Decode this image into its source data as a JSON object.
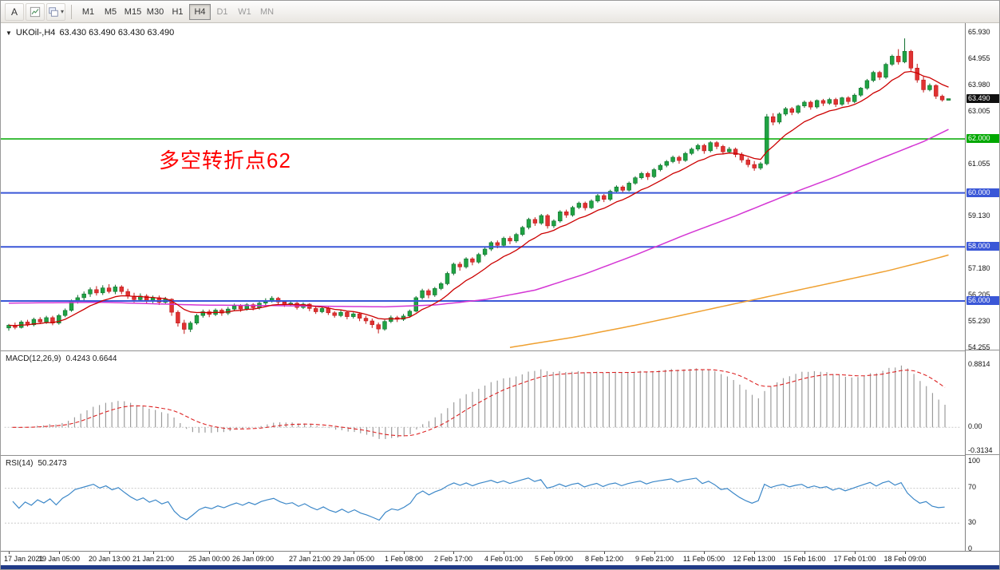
{
  "toolbar": {
    "a_button_label": "A",
    "timeframes": [
      "M1",
      "M5",
      "M15",
      "M30",
      "H1",
      "H4",
      "D1",
      "W1",
      "MN"
    ],
    "active_timeframe": "H4",
    "dim_timeframes": [
      "D1",
      "W1",
      "MN"
    ]
  },
  "chart": {
    "title": "UKOil-,H4",
    "ohlc": "63.430 63.490 63.430 63.490",
    "annotation": "多空转折点62",
    "annotation_color": "#ff0000"
  },
  "price_axis": {
    "labels": [
      {
        "text": "65.930",
        "price": 65.93,
        "style": "normal"
      },
      {
        "text": "64.955",
        "price": 64.955,
        "style": "normal"
      },
      {
        "text": "63.980",
        "price": 63.98,
        "style": "normal"
      },
      {
        "text": "63.005",
        "price": 63.005,
        "style": "normal"
      },
      {
        "text": "63.490",
        "price": 63.49,
        "style": "current"
      },
      {
        "text": "62.000",
        "price": 62.0,
        "style": "green"
      },
      {
        "text": "61.055",
        "price": 61.055,
        "style": "normal"
      },
      {
        "text": "60.000",
        "price": 60.0,
        "style": "blue"
      },
      {
        "text": "59.130",
        "price": 59.13,
        "style": "normal"
      },
      {
        "text": "58.000",
        "price": 58.0,
        "style": "blue"
      },
      {
        "text": "57.180",
        "price": 57.18,
        "style": "normal"
      },
      {
        "text": "56.205",
        "price": 56.205,
        "style": "normal"
      },
      {
        "text": "56.000",
        "price": 56.0,
        "style": "blue"
      },
      {
        "text": "55.230",
        "price": 55.23,
        "style": "normal"
      },
      {
        "text": "54.255",
        "price": 54.255,
        "style": "normal"
      }
    ]
  },
  "hlines": [
    {
      "price": 62.0,
      "color": "#00a800",
      "width": 1.6
    },
    {
      "price": 60.0,
      "color": "#3a57d7",
      "width": 2
    },
    {
      "price": 58.0,
      "color": "#3a57d7",
      "width": 2
    },
    {
      "price": 56.0,
      "color": "#3a57d7",
      "width": 2
    }
  ],
  "indicators": {
    "macd": {
      "label": "MACD(12,26,9)",
      "values": "0.4243 0.6644",
      "axis": [
        "0.8814",
        "0.00",
        "-0.3134"
      ]
    },
    "rsi": {
      "label": "RSI(14)",
      "value": "50.2473",
      "axis": [
        "100",
        "70",
        "30",
        "0"
      ],
      "levels": [
        70,
        30
      ]
    }
  },
  "time_axis": [
    {
      "i": 0,
      "label": "17 Jan 2021"
    },
    {
      "i": 8,
      "label": "19 Jan 05:00"
    },
    {
      "i": 16,
      "label": "20 Jan 13:00"
    },
    {
      "i": 23,
      "label": "21 Jan 21:00"
    },
    {
      "i": 32,
      "label": "25 Jan 00:00"
    },
    {
      "i": 39,
      "label": "26 Jan 09:00"
    },
    {
      "i": 48,
      "label": "27 Jan 21:00"
    },
    {
      "i": 55,
      "label": "29 Jan 05:00"
    },
    {
      "i": 63,
      "label": "1 Feb 08:00"
    },
    {
      "i": 71,
      "label": "2 Feb 17:00"
    },
    {
      "i": 79,
      "label": "4 Feb 01:00"
    },
    {
      "i": 87,
      "label": "5 Feb 09:00"
    },
    {
      "i": 95,
      "label": "8 Feb 12:00"
    },
    {
      "i": 103,
      "label": "9 Feb 21:00"
    },
    {
      "i": 111,
      "label": "11 Feb 05:00"
    },
    {
      "i": 119,
      "label": "12 Feb 13:00"
    },
    {
      "i": 127,
      "label": "15 Feb 16:00"
    },
    {
      "i": 135,
      "label": "17 Feb 01:00"
    },
    {
      "i": 143,
      "label": "18 Feb 09:00"
    }
  ],
  "chart_data": {
    "type": "candlestick",
    "symbol": "UKOil",
    "timeframe": "H4",
    "price_top": 65.93,
    "price_bottom": 54.255,
    "ma_fast_period": 10,
    "colors": {
      "up": "#1fa343",
      "up_border": "#0f6f2d",
      "down": "#e03232",
      "down_border": "#c01818",
      "ma_fast": "#cc0000",
      "ma_mid": "#d435d4",
      "ma_slow": "#efa030",
      "rsi": "#3b87c8",
      "macd_hist": "#9b9b9b",
      "macd_signal": "#dd2222"
    },
    "candles": [
      [
        55.0,
        55.15,
        54.9,
        55.1
      ],
      [
        55.1,
        55.2,
        54.95,
        55.02
      ],
      [
        55.02,
        55.28,
        54.98,
        55.22
      ],
      [
        55.22,
        55.3,
        55.05,
        55.12
      ],
      [
        55.12,
        55.38,
        55.06,
        55.32
      ],
      [
        55.32,
        55.4,
        55.15,
        55.22
      ],
      [
        55.22,
        55.45,
        55.15,
        55.38
      ],
      [
        55.38,
        55.45,
        55.1,
        55.18
      ],
      [
        55.18,
        55.52,
        55.12,
        55.46
      ],
      [
        55.46,
        55.72,
        55.4,
        55.65
      ],
      [
        55.65,
        56.05,
        55.6,
        55.98
      ],
      [
        55.98,
        56.22,
        55.9,
        56.12
      ],
      [
        56.12,
        56.35,
        56.0,
        56.26
      ],
      [
        56.26,
        56.5,
        56.15,
        56.42
      ],
      [
        56.42,
        56.55,
        56.2,
        56.3
      ],
      [
        56.3,
        56.58,
        56.22,
        56.48
      ],
      [
        56.48,
        56.62,
        56.28,
        56.35
      ],
      [
        56.35,
        56.6,
        56.25,
        56.52
      ],
      [
        56.52,
        56.58,
        56.25,
        56.35
      ],
      [
        56.35,
        56.45,
        56.08,
        56.18
      ],
      [
        56.18,
        56.3,
        55.95,
        56.05
      ],
      [
        56.05,
        56.28,
        55.98,
        56.18
      ],
      [
        56.18,
        56.25,
        55.92,
        56.0
      ],
      [
        56.0,
        56.2,
        55.92,
        56.12
      ],
      [
        56.12,
        56.2,
        55.85,
        55.95
      ],
      [
        55.95,
        56.15,
        55.88,
        56.06
      ],
      [
        56.06,
        56.1,
        55.45,
        55.58
      ],
      [
        55.58,
        55.65,
        55.05,
        55.18
      ],
      [
        55.18,
        55.3,
        54.78,
        54.95
      ],
      [
        54.95,
        55.25,
        54.85,
        55.18
      ],
      [
        55.18,
        55.52,
        55.12,
        55.46
      ],
      [
        55.46,
        55.68,
        55.38,
        55.6
      ],
      [
        55.6,
        55.68,
        55.4,
        55.5
      ],
      [
        55.5,
        55.72,
        55.44,
        55.66
      ],
      [
        55.66,
        55.72,
        55.45,
        55.55
      ],
      [
        55.55,
        55.78,
        55.48,
        55.7
      ],
      [
        55.7,
        55.9,
        55.62,
        55.82
      ],
      [
        55.82,
        55.88,
        55.6,
        55.7
      ],
      [
        55.7,
        55.92,
        55.64,
        55.86
      ],
      [
        55.86,
        55.92,
        55.65,
        55.75
      ],
      [
        55.75,
        55.98,
        55.68,
        55.92
      ],
      [
        55.92,
        56.1,
        55.85,
        56.02
      ],
      [
        56.02,
        56.18,
        55.94,
        56.1
      ],
      [
        56.1,
        56.15,
        55.88,
        55.96
      ],
      [
        55.96,
        56.02,
        55.78,
        55.86
      ],
      [
        55.86,
        56.0,
        55.8,
        55.92
      ],
      [
        55.92,
        55.96,
        55.68,
        55.76
      ],
      [
        55.76,
        55.95,
        55.7,
        55.88
      ],
      [
        55.88,
        55.92,
        55.62,
        55.72
      ],
      [
        55.72,
        55.8,
        55.52,
        55.6
      ],
      [
        55.6,
        55.8,
        55.55,
        55.72
      ],
      [
        55.72,
        55.78,
        55.48,
        55.56
      ],
      [
        55.56,
        55.62,
        55.38,
        55.46
      ],
      [
        55.46,
        55.66,
        55.4,
        55.58
      ],
      [
        55.58,
        55.62,
        55.32,
        55.42
      ],
      [
        55.42,
        55.58,
        55.35,
        55.52
      ],
      [
        55.52,
        55.56,
        55.25,
        55.36
      ],
      [
        55.36,
        55.45,
        55.15,
        55.26
      ],
      [
        55.26,
        55.35,
        55.0,
        55.12
      ],
      [
        55.12,
        55.2,
        54.8,
        54.96
      ],
      [
        54.96,
        55.3,
        54.9,
        55.24
      ],
      [
        55.24,
        55.46,
        55.18,
        55.38
      ],
      [
        55.38,
        55.45,
        55.22,
        55.32
      ],
      [
        55.32,
        55.52,
        55.26,
        55.44
      ],
      [
        55.44,
        55.68,
        55.38,
        55.62
      ],
      [
        55.62,
        56.18,
        55.58,
        56.12
      ],
      [
        56.12,
        56.45,
        56.05,
        56.38
      ],
      [
        56.38,
        56.45,
        56.1,
        56.22
      ],
      [
        56.22,
        56.52,
        56.15,
        56.46
      ],
      [
        56.46,
        56.7,
        56.4,
        56.64
      ],
      [
        56.64,
        57.08,
        56.58,
        57.02
      ],
      [
        57.02,
        57.42,
        56.95,
        57.36
      ],
      [
        57.36,
        57.45,
        57.12,
        57.26
      ],
      [
        57.26,
        57.62,
        57.2,
        57.56
      ],
      [
        57.56,
        57.62,
        57.32,
        57.44
      ],
      [
        57.44,
        57.78,
        57.38,
        57.72
      ],
      [
        57.72,
        57.98,
        57.65,
        57.92
      ],
      [
        57.92,
        58.22,
        57.85,
        58.16
      ],
      [
        58.16,
        58.24,
        57.95,
        58.06
      ],
      [
        58.06,
        58.38,
        58.0,
        58.32
      ],
      [
        58.32,
        58.4,
        58.1,
        58.22
      ],
      [
        58.22,
        58.52,
        58.15,
        58.46
      ],
      [
        58.46,
        58.78,
        58.4,
        58.72
      ],
      [
        58.72,
        59.08,
        58.65,
        59.02
      ],
      [
        59.02,
        59.1,
        58.78,
        58.88
      ],
      [
        58.88,
        59.22,
        58.82,
        59.16
      ],
      [
        59.16,
        59.22,
        58.68,
        58.78
      ],
      [
        58.78,
        59.02,
        58.7,
        58.96
      ],
      [
        58.96,
        59.36,
        58.9,
        59.3
      ],
      [
        59.3,
        59.38,
        59.08,
        59.18
      ],
      [
        59.18,
        59.52,
        59.12,
        59.46
      ],
      [
        59.46,
        59.68,
        59.4,
        59.62
      ],
      [
        59.62,
        59.68,
        59.35,
        59.45
      ],
      [
        59.45,
        59.76,
        59.4,
        59.7
      ],
      [
        59.7,
        59.96,
        59.64,
        59.9
      ],
      [
        59.9,
        59.96,
        59.66,
        59.76
      ],
      [
        59.76,
        60.12,
        59.7,
        60.06
      ],
      [
        60.06,
        60.28,
        60.0,
        60.22
      ],
      [
        60.22,
        60.28,
        59.98,
        60.1
      ],
      [
        60.1,
        60.42,
        60.05,
        60.36
      ],
      [
        60.36,
        60.62,
        60.3,
        60.56
      ],
      [
        60.56,
        60.78,
        60.5,
        60.72
      ],
      [
        60.72,
        60.78,
        60.48,
        60.6
      ],
      [
        60.6,
        60.92,
        60.55,
        60.86
      ],
      [
        60.86,
        61.08,
        60.8,
        61.02
      ],
      [
        61.02,
        61.22,
        60.95,
        61.16
      ],
      [
        61.16,
        61.38,
        61.1,
        61.32
      ],
      [
        61.32,
        61.38,
        61.08,
        61.2
      ],
      [
        61.2,
        61.52,
        61.15,
        61.46
      ],
      [
        61.46,
        61.68,
        61.4,
        61.62
      ],
      [
        61.62,
        61.82,
        61.55,
        61.76
      ],
      [
        61.76,
        61.82,
        61.45,
        61.56
      ],
      [
        61.56,
        61.92,
        61.5,
        61.86
      ],
      [
        61.86,
        61.92,
        61.62,
        61.72
      ],
      [
        61.72,
        61.78,
        61.42,
        61.52
      ],
      [
        61.52,
        61.7,
        61.46,
        61.62
      ],
      [
        61.62,
        61.68,
        61.32,
        61.42
      ],
      [
        61.42,
        61.5,
        61.12,
        61.22
      ],
      [
        61.22,
        61.3,
        60.95,
        61.05
      ],
      [
        61.05,
        61.18,
        60.82,
        60.92
      ],
      [
        60.92,
        61.15,
        60.85,
        61.08
      ],
      [
        61.08,
        62.92,
        61.02,
        62.82
      ],
      [
        62.82,
        62.95,
        62.5,
        62.62
      ],
      [
        62.62,
        62.98,
        62.55,
        62.92
      ],
      [
        62.92,
        63.18,
        62.85,
        63.12
      ],
      [
        63.12,
        63.18,
        62.88,
        62.98
      ],
      [
        62.98,
        63.26,
        62.92,
        63.22
      ],
      [
        63.22,
        63.42,
        63.15,
        63.36
      ],
      [
        63.36,
        63.42,
        63.08,
        63.18
      ],
      [
        63.18,
        63.46,
        63.12,
        63.42
      ],
      [
        63.42,
        63.48,
        63.22,
        63.32
      ],
      [
        63.32,
        63.52,
        63.26,
        63.46
      ],
      [
        63.46,
        63.52,
        63.18,
        63.28
      ],
      [
        63.28,
        63.56,
        63.22,
        63.52
      ],
      [
        63.52,
        63.58,
        63.28,
        63.38
      ],
      [
        63.38,
        63.68,
        63.32,
        63.62
      ],
      [
        63.62,
        63.92,
        63.56,
        63.88
      ],
      [
        63.88,
        64.22,
        63.82,
        64.16
      ],
      [
        64.16,
        64.52,
        64.1,
        64.46
      ],
      [
        64.46,
        64.52,
        64.18,
        64.28
      ],
      [
        64.28,
        64.82,
        64.22,
        64.76
      ],
      [
        64.76,
        65.12,
        64.7,
        65.06
      ],
      [
        65.06,
        65.32,
        64.75,
        64.85
      ],
      [
        64.85,
        65.72,
        64.8,
        65.24
      ],
      [
        65.24,
        65.3,
        64.52,
        64.62
      ],
      [
        64.62,
        64.78,
        64.08,
        64.18
      ],
      [
        64.18,
        64.3,
        63.72,
        63.82
      ],
      [
        63.82,
        64.05,
        63.76,
        63.98
      ],
      [
        63.98,
        64.02,
        63.48,
        63.58
      ],
      [
        63.58,
        63.64,
        63.38,
        63.44
      ],
      [
        63.43,
        63.49,
        63.43,
        63.49
      ]
    ],
    "ma_mid_anchors": [
      [
        0,
        55.92
      ],
      [
        15,
        55.95
      ],
      [
        30,
        55.85
      ],
      [
        45,
        55.82
      ],
      [
        60,
        55.78
      ],
      [
        68,
        55.85
      ],
      [
        76,
        56.05
      ],
      [
        84,
        56.4
      ],
      [
        92,
        57.0
      ],
      [
        100,
        57.7
      ],
      [
        108,
        58.45
      ],
      [
        116,
        59.15
      ],
      [
        124,
        59.9
      ],
      [
        132,
        60.6
      ],
      [
        140,
        61.35
      ],
      [
        146,
        61.9
      ],
      [
        150,
        62.35
      ]
    ],
    "ma_slow_anchors": [
      [
        80,
        54.28
      ],
      [
        90,
        54.65
      ],
      [
        100,
        55.1
      ],
      [
        110,
        55.6
      ],
      [
        120,
        56.1
      ],
      [
        130,
        56.6
      ],
      [
        140,
        57.1
      ],
      [
        146,
        57.45
      ],
      [
        150,
        57.7
      ]
    ]
  }
}
